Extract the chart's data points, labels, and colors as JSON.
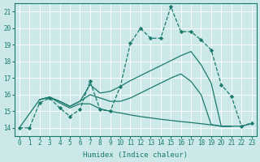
{
  "xlabel": "Humidex (Indice chaleur)",
  "xlim": [
    -0.5,
    23.5
  ],
  "ylim": [
    13.5,
    21.5
  ],
  "xticks": [
    0,
    1,
    2,
    3,
    4,
    5,
    6,
    7,
    8,
    9,
    10,
    11,
    12,
    13,
    14,
    15,
    16,
    17,
    18,
    19,
    20,
    21,
    22,
    23
  ],
  "yticks": [
    14,
    15,
    16,
    17,
    18,
    19,
    20,
    21
  ],
  "bg_color": "#cce8e8",
  "line_color": "#1a7a6e",
  "grid_color": "#ffffff",
  "line1_x": [
    0,
    1,
    2,
    3,
    4,
    5,
    6,
    7,
    8,
    9,
    10,
    11,
    12,
    13,
    14,
    15,
    16,
    17,
    18,
    19,
    20,
    21,
    22,
    23
  ],
  "line1_y": [
    14,
    14,
    15.5,
    15.8,
    15.2,
    14.7,
    15.1,
    16.8,
    15.1,
    15.0,
    16.5,
    19.1,
    20.0,
    19.4,
    19.4,
    21.3,
    19.8,
    19.8,
    19.3,
    18.7,
    16.6,
    15.9,
    14.1,
    14.3
  ],
  "line2_x": [
    2,
    3,
    4,
    5,
    6,
    7,
    8,
    9,
    10,
    11,
    12,
    13,
    14,
    15,
    16,
    17,
    18,
    19,
    20,
    21
  ],
  "line2_y": [
    15.7,
    15.85,
    15.6,
    15.3,
    15.6,
    16.6,
    16.1,
    16.2,
    16.5,
    16.85,
    17.15,
    17.45,
    17.75,
    18.05,
    18.35,
    18.6,
    17.8,
    16.7,
    14.1,
    14.1
  ],
  "line3_x": [
    2,
    3,
    4,
    5,
    6,
    7,
    8,
    9,
    10,
    11,
    12,
    13,
    14,
    15,
    16,
    17,
    18,
    19,
    20,
    21
  ],
  "line3_y": [
    15.7,
    15.85,
    15.6,
    15.3,
    15.6,
    16.0,
    15.8,
    15.6,
    15.6,
    15.8,
    16.1,
    16.4,
    16.7,
    17.0,
    17.25,
    16.8,
    16.0,
    14.2,
    14.1,
    14.1
  ],
  "line4_x": [
    0,
    2,
    3,
    4,
    5,
    6,
    7,
    8,
    9,
    10,
    11,
    12,
    13,
    14,
    15,
    16,
    17,
    18,
    19,
    20,
    21,
    22,
    23
  ],
  "line4_y": [
    14,
    15.7,
    15.85,
    15.5,
    15.2,
    15.45,
    15.45,
    15.15,
    15.0,
    14.9,
    14.78,
    14.68,
    14.6,
    14.52,
    14.45,
    14.38,
    14.32,
    14.25,
    14.18,
    14.1,
    14.1,
    14.1,
    14.25
  ]
}
